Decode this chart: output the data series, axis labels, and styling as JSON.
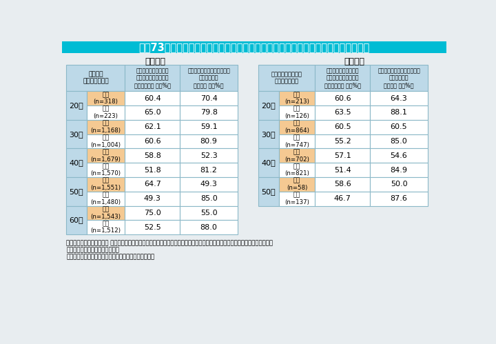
{
  "title": "特－73表　家事・育児スキルの自己評価と配偶者の実施する家事・育児への満足度",
  "title_bg": "#00BCD4",
  "title_color": "#FFFFFF",
  "bg_color": "#E8EDF0",
  "female_bg": "#F5C992",
  "male_bg": "#FFFFFF",
  "age_col_bg": "#BDD9E8",
  "header_bg": "#BDD9E8",
  "border_color": "#8BB8C8",
  "subtitle_left": "＜家事＞",
  "subtitle_right": "＜育児＞",
  "left_table": {
    "rows": [
      {
        "age": "20代",
        "gender": "女性",
        "n": "n=318",
        "skill": "60.4",
        "satisfy": "70.4"
      },
      {
        "age": "20代",
        "gender": "男性",
        "n": "n=223",
        "skill": "65.0",
        "satisfy": "79.8"
      },
      {
        "age": "30代",
        "gender": "女性",
        "n": "n=1,168",
        "skill": "62.1",
        "satisfy": "59.1"
      },
      {
        "age": "30代",
        "gender": "男性",
        "n": "n=1,004",
        "skill": "60.6",
        "satisfy": "80.9"
      },
      {
        "age": "40代",
        "gender": "女性",
        "n": "n=1,679",
        "skill": "58.8",
        "satisfy": "52.3"
      },
      {
        "age": "40代",
        "gender": "男性",
        "n": "n=1,570",
        "skill": "51.8",
        "satisfy": "81.2"
      },
      {
        "age": "50代",
        "gender": "女性",
        "n": "n=1,551",
        "skill": "64.7",
        "satisfy": "49.3"
      },
      {
        "age": "50代",
        "gender": "男性",
        "n": "n=1,480",
        "skill": "49.3",
        "satisfy": "85.0"
      },
      {
        "age": "60代",
        "gender": "女性",
        "n": "n=1,543",
        "skill": "75.0",
        "satisfy": "55.0"
      },
      {
        "age": "60代",
        "gender": "男性",
        "n": "n=1,512",
        "skill": "52.5",
        "satisfy": "88.0"
      }
    ]
  },
  "right_table": {
    "rows": [
      {
        "age": "20代",
        "gender": "女性",
        "n": "n=213",
        "skill": "60.6",
        "satisfy": "64.3"
      },
      {
        "age": "20代",
        "gender": "男性",
        "n": "n=126",
        "skill": "63.5",
        "satisfy": "88.1"
      },
      {
        "age": "30代",
        "gender": "女性",
        "n": "n=864",
        "skill": "60.5",
        "satisfy": "60.5"
      },
      {
        "age": "30代",
        "gender": "男性",
        "n": "n=747",
        "skill": "55.2",
        "satisfy": "85.0"
      },
      {
        "age": "40代",
        "gender": "女性",
        "n": "n=702",
        "skill": "57.1",
        "satisfy": "54.6"
      },
      {
        "age": "40代",
        "gender": "男性",
        "n": "n=821",
        "skill": "51.4",
        "satisfy": "84.9"
      },
      {
        "age": "50代",
        "gender": "女性",
        "n": "n=58",
        "skill": "58.6",
        "satisfy": "50.0"
      },
      {
        "age": "50代",
        "gender": "男性",
        "n": "n=137",
        "skill": "46.7",
        "satisfy": "87.6"
      }
    ]
  },
  "footnote1": "（備考）１．「令和４年度 新しいライフスタイル、新しい働き方を踏まえた男女共同参画推進に関する調査」（令和４年度内閣府",
  "footnote2": "　　　　　委託調査）より作成。",
  "footnote3": "　　　　２．配偶者には、事実婚・内縁の関係を含む。"
}
